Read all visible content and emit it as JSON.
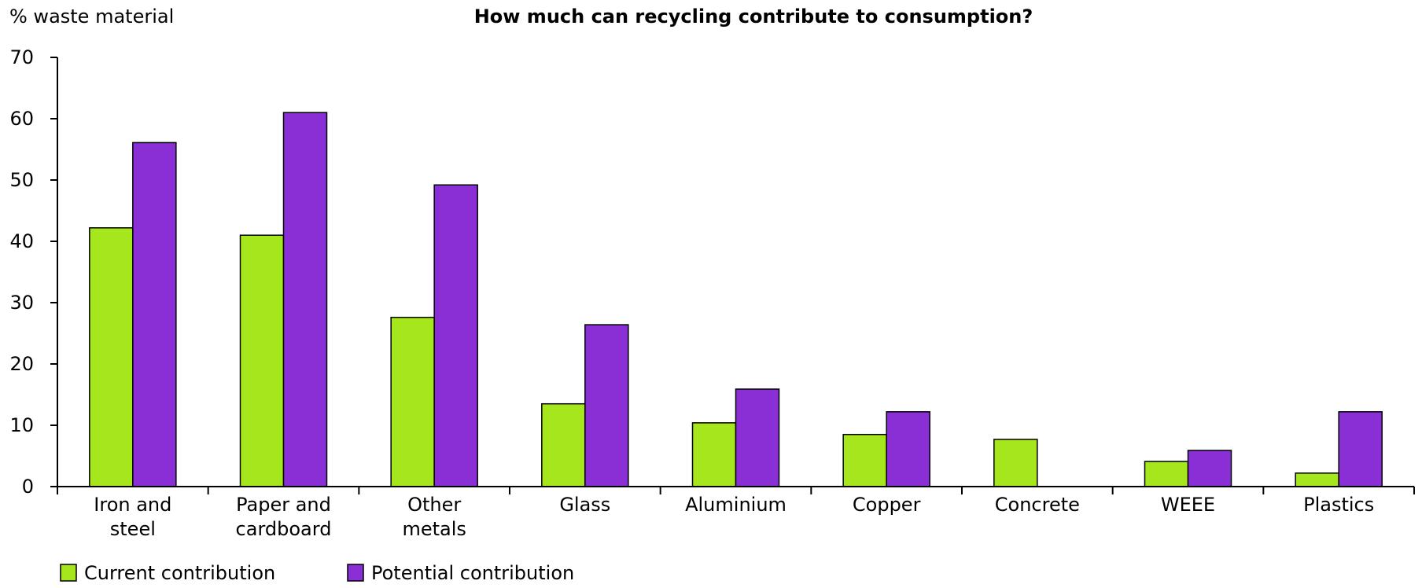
{
  "chart_data": {
    "type": "bar",
    "title": "How much can recycling contribute to consumption?",
    "ylabel": "% waste material",
    "xlabel": "",
    "ylim": [
      0,
      70
    ],
    "yticks": [
      0,
      10,
      20,
      30,
      40,
      50,
      60,
      70
    ],
    "grid": false,
    "legend_position": "bottom-left",
    "categories": [
      [
        "Iron and",
        "steel"
      ],
      [
        "Paper and",
        "cardboard"
      ],
      [
        "Other",
        "metals"
      ],
      [
        "Glass"
      ],
      [
        "Aluminium"
      ],
      [
        "Copper"
      ],
      [
        "Concrete"
      ],
      [
        "WEEE"
      ],
      [
        "Plastics"
      ]
    ],
    "series": [
      {
        "name": "Current contribution",
        "color": "#a6e61c",
        "values": [
          42.2,
          41.0,
          27.6,
          13.5,
          10.4,
          8.5,
          7.7,
          4.1,
          2.2
        ]
      },
      {
        "name": "Potential contribution",
        "color": "#8a2fd6",
        "values": [
          56.1,
          61.0,
          49.2,
          26.4,
          15.9,
          12.2,
          null,
          5.9,
          12.2
        ]
      }
    ]
  }
}
